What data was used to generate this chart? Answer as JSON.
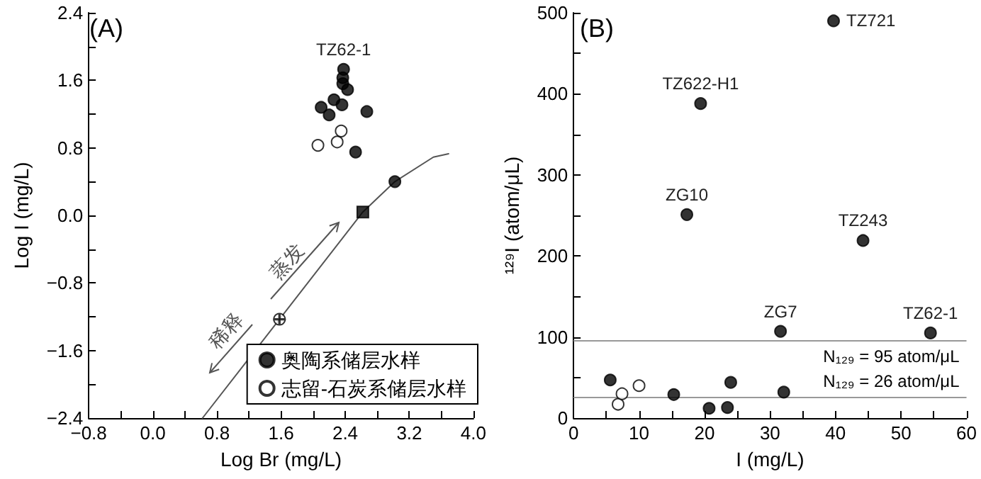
{
  "chart_data": [
    {
      "type": "scatter",
      "title": "(A)",
      "xlabel": "Log Br (mg/L)",
      "ylabel": "Log I (mg/L)",
      "xlim": [
        -0.8,
        4.0
      ],
      "ylim": [
        -2.4,
        2.4
      ],
      "xticks": [
        {
          "value": -0.8,
          "label": "−0.8"
        },
        {
          "value": -0.4,
          "label": null
        },
        {
          "value": 0,
          "label": "0.0"
        },
        {
          "value": 0.4,
          "label": null
        },
        {
          "value": 0.8,
          "label": "0.8"
        },
        {
          "value": 1.2,
          "label": null
        },
        {
          "value": 1.6,
          "label": "1.6"
        },
        {
          "value": 2.0,
          "label": null
        },
        {
          "value": 2.4,
          "label": "2.4"
        },
        {
          "value": 2.8,
          "label": null
        },
        {
          "value": 3.2,
          "label": "3.2"
        },
        {
          "value": 3.6,
          "label": null
        },
        {
          "value": 4.0,
          "label": "4.0"
        }
      ],
      "yticks": [
        {
          "value": -2.4,
          "label": "−2.4"
        },
        {
          "value": -2.0,
          "label": null
        },
        {
          "value": -1.6,
          "label": "−1.6"
        },
        {
          "value": -1.2,
          "label": null
        },
        {
          "value": -0.8,
          "label": "−0.8"
        },
        {
          "value": -0.4,
          "label": null
        },
        {
          "value": 0,
          "label": "0.0"
        },
        {
          "value": 0.4,
          "label": null
        },
        {
          "value": 0.8,
          "label": "0.8"
        },
        {
          "value": 1.2,
          "label": null
        },
        {
          "value": 1.6,
          "label": "1.6"
        },
        {
          "value": 2.0,
          "label": null
        },
        {
          "value": 2.4,
          "label": "2.4"
        }
      ],
      "grid": false,
      "legend": "bottom right",
      "series": [
        {
          "name": "奥陶系储层水样",
          "color": "#000000",
          "marker": "circle",
          "x": [
            2.38,
            2.37,
            2.37,
            2.43,
            2.1,
            2.26,
            2.36,
            2.2,
            2.67,
            2.53
          ],
          "values": [
            1.73,
            1.63,
            1.56,
            1.49,
            1.28,
            1.37,
            1.31,
            1.19,
            1.23,
            0.75
          ]
        },
        {
          "name": "志留-石炭系储层水样",
          "color": "#ffffff",
          "marker": "circle",
          "x": [
            2.06,
            2.3,
            2.35
          ],
          "values": [
            0.83,
            0.87,
            1.0
          ]
        },
        {
          "type": "line",
          "color": "#555555",
          "marker": "none",
          "line_style": "solid",
          "x": [
            0.62,
            1.58,
            2.62,
            3.02,
            3.5,
            3.69
          ],
          "values": [
            -2.4,
            -1.23,
            0.04,
            0.4,
            0.69,
            0.73
          ]
        },
        {
          "color": "#ffffff",
          "marker": "cross",
          "x": [
            1.58
          ],
          "values": [
            -1.23
          ]
        },
        {
          "color": "#000000",
          "marker": "square",
          "x": [
            2.62
          ],
          "values": [
            0.04
          ]
        },
        {
          "color": "#000000",
          "x": [
            3.02
          ],
          "values": [
            0.4
          ]
        }
      ],
      "annotations": [
        {
          "text": "TZ62-1",
          "x": 2.38,
          "y": 1.73
        },
        "蒸发",
        "稀释"
      ]
    },
    {
      "type": "scatter",
      "title": "(B)",
      "xlabel": "I (mg/L)",
      "ylabel": "¹²⁹I (atom/μL)",
      "xlim": [
        0,
        60
      ],
      "ylim": [
        0,
        500
      ],
      "xticks": [
        0,
        {
          "value": 5,
          "label": null
        },
        10,
        {
          "value": 15,
          "label": null
        },
        20,
        {
          "value": 25,
          "label": null
        },
        30,
        {
          "value": 35,
          "label": null
        },
        40,
        {
          "value": 45,
          "label": null
        },
        50,
        {
          "value": 55,
          "label": null
        },
        60
      ],
      "yticks": [
        0,
        {
          "value": 50,
          "label": null
        },
        100,
        {
          "value": 150,
          "label": null
        },
        200,
        {
          "value": 250,
          "label": null
        },
        300,
        {
          "value": 350,
          "label": null
        },
        400,
        {
          "value": 450,
          "label": null
        },
        500
      ],
      "grid": false,
      "legend": false,
      "series": [
        {
          "color": "#000000",
          "marker": "circle",
          "x": [
            39.7,
            19.4,
            17.3,
            44.2,
            31.6,
            54.5,
            5.6,
            15.3,
            20.7,
            23.5,
            24.0,
            32.1
          ],
          "values": [
            490,
            388,
            251,
            219,
            107,
            105,
            47,
            29,
            12,
            13,
            44,
            32
          ]
        },
        {
          "color": "#ffffff",
          "marker": "circle",
          "x": [
            6.8,
            7.4,
            10.0
          ],
          "values": [
            17,
            30,
            40
          ]
        }
      ],
      "ref_lines": [
        {
          "axis": "y",
          "value": 95,
          "label": "N₁₂₉ = 95 atom/μL",
          "color": "#999999"
        },
        {
          "axis": "y",
          "value": 26,
          "label": "N₁₂₉ = 26 atom/μL",
          "color": "#999999"
        }
      ],
      "annotations": [
        {
          "text": "TZ721",
          "x": 39.7,
          "y": 490
        },
        {
          "text": "TZ622-H1",
          "x": 19.4,
          "y": 388
        },
        {
          "text": "ZG10",
          "x": 17.3,
          "y": 251
        },
        {
          "text": "TZ243",
          "x": 44.2,
          "y": 219
        },
        {
          "text": "ZG7",
          "x": 31.6,
          "y": 107
        },
        {
          "text": "TZ62-1",
          "x": 54.5,
          "y": 105
        }
      ]
    }
  ]
}
